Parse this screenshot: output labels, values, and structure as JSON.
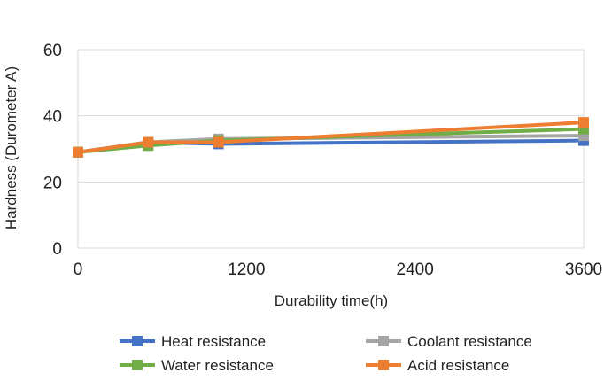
{
  "chart_data": {
    "type": "line",
    "xlabel": "Durability time(h)",
    "ylabel": "Hardness (Durometer A)",
    "xlim": [
      0,
      3600
    ],
    "ylim": [
      0,
      60
    ],
    "x_ticks": [
      "0",
      "1200",
      "2400",
      "3600"
    ],
    "x_tick_values": [
      0,
      1200,
      2400,
      3600
    ],
    "y_ticks": [
      "0",
      "20",
      "40",
      "60"
    ],
    "y_tick_values": [
      0,
      20,
      40,
      60
    ],
    "grid": "horizontal",
    "legend_position": "bottom",
    "series": [
      {
        "name": "Heat resistance",
        "color": "#4472c4",
        "x": [
          0,
          500,
          1000,
          3600
        ],
        "values": [
          29,
          32,
          31.5,
          32.5
        ]
      },
      {
        "name": "Coolant resistance",
        "color": "#a5a5a5",
        "x": [
          0,
          500,
          1000,
          3600
        ],
        "values": [
          29,
          32,
          33,
          34
        ]
      },
      {
        "name": "Water resistance",
        "color": "#70ad47",
        "x": [
          0,
          500,
          1000,
          3600
        ],
        "values": [
          29,
          31,
          32.5,
          36
        ]
      },
      {
        "name": "Acid resistance",
        "color": "#ed7d31",
        "x": [
          0,
          500,
          1000,
          3600
        ],
        "values": [
          29,
          32,
          32,
          38
        ]
      }
    ]
  }
}
